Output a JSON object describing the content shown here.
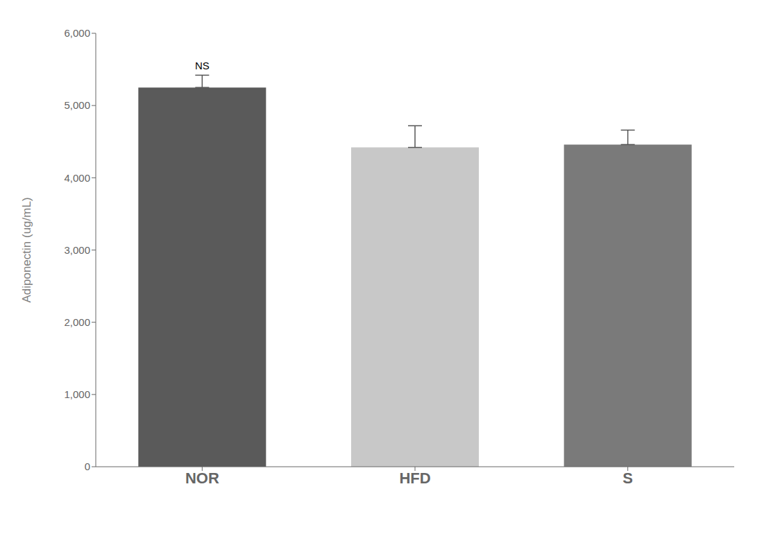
{
  "chart_data": {
    "type": "bar",
    "categories": [
      "NOR",
      "HFD",
      "S"
    ],
    "values": [
      5250,
      4420,
      4460
    ],
    "errors": [
      170,
      300,
      200
    ],
    "colors": [
      "#5a5a5a",
      "#c8c8c8",
      "#7a7a7a"
    ],
    "ylabel": "Adiponectin (ug/mL)",
    "ylim": [
      0,
      6000
    ],
    "yticks": [
      0,
      {
        "value": 1000,
        "label": "1,000"
      },
      {
        "value": 2000,
        "label": "2,000"
      },
      {
        "value": 3000,
        "label": "3,000"
      },
      {
        "value": 4000,
        "label": "4,000"
      },
      {
        "value": 5000,
        "label": "5,000"
      },
      {
        "value": 6000,
        "label": "6,000"
      }
    ],
    "annotations": [
      {
        "text": "NS",
        "x": "NOR",
        "y": 5450
      }
    ],
    "grid": false
  }
}
